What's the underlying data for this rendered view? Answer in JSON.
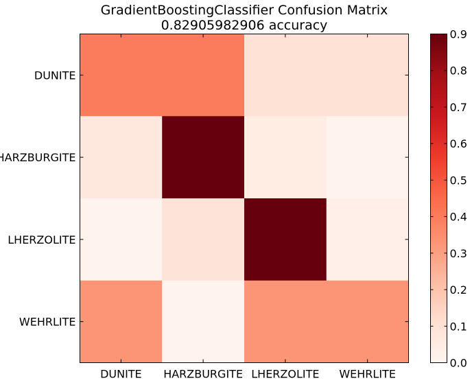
{
  "chart_data": {
    "type": "heatmap",
    "title": "GradientBoostingClassifier Confusion Matrix",
    "subtitle": "0.82905982906 accuracy",
    "xlabel": "",
    "ylabel": "",
    "x_categories": [
      "DUNITE",
      "HARZBURGITE",
      "LHERZOLITE",
      "WEHRLITE"
    ],
    "y_categories": [
      "DUNITE",
      "HARZBURGITE",
      "LHERZOLITE",
      "WEHRLITE"
    ],
    "values": [
      [
        0.4,
        0.4,
        0.1,
        0.1
      ],
      [
        0.07,
        0.9,
        0.05,
        0.01
      ],
      [
        0.01,
        0.09,
        0.9,
        0.03
      ],
      [
        0.33,
        0.01,
        0.33,
        0.33
      ]
    ],
    "colormap": "Reds",
    "colorbar": {
      "range": [
        0.0,
        0.9
      ],
      "ticks": [
        "0.0",
        "0.1",
        "0.2",
        "0.3",
        "0.4",
        "0.5",
        "0.6",
        "0.7",
        "0.8",
        "0.9"
      ]
    }
  }
}
